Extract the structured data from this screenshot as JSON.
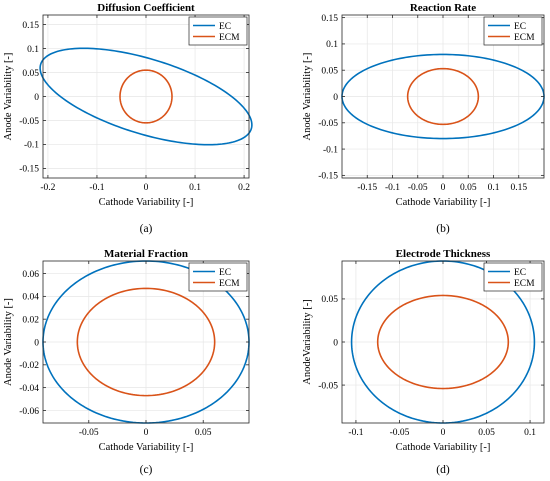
{
  "chart_data": [
    {
      "type": "line",
      "title": "Diffusion Coefficient",
      "xlabel": "Cathode Variability [-]",
      "ylabel": "Anode Variability [-]",
      "caption": "(a)",
      "xlim": [
        -0.21,
        0.21
      ],
      "ylim": [
        -0.17,
        0.17
      ],
      "xticks": [
        -0.2,
        -0.1,
        0,
        0.1,
        0.2
      ],
      "xtick_labels": [
        "-0.2",
        "-0.1",
        "0",
        "0.1",
        "0.2"
      ],
      "yticks": [
        -0.15,
        -0.1,
        -0.05,
        0,
        0.05,
        0.1,
        0.15
      ],
      "ytick_labels": [
        "-0.15",
        "-0.1",
        "-0.05",
        "0",
        "0.05",
        "0.1",
        "0.15"
      ],
      "grid": true,
      "legend": "top-right",
      "series": [
        {
          "name": "EC",
          "color": "#0072BD",
          "shape": "tilted-ellipse",
          "cx": 0,
          "cy": 0,
          "a": 0.225,
          "b": 0.078,
          "angle_deg": -17.5
        },
        {
          "name": "ECM",
          "color": "#D95319",
          "shape": "ellipse",
          "cx": 0,
          "cy": 0,
          "a": 0.053,
          "b": 0.055,
          "angle_deg": 0
        }
      ]
    },
    {
      "type": "line",
      "title": "Reaction Rate",
      "xlabel": "Cathode Variability [-]",
      "ylabel": "Anode Variability [-]",
      "caption": "(b)",
      "xlim": [
        -0.2,
        0.2
      ],
      "ylim": [
        -0.155,
        0.155
      ],
      "xticks": [
        -0.15,
        -0.1,
        -0.05,
        0,
        0.05,
        0.1,
        0.15
      ],
      "xtick_labels": [
        "-0.15",
        "-0.1",
        "-0.05",
        "0",
        "0.05",
        "0.1",
        "0.15"
      ],
      "yticks": [
        -0.15,
        -0.1,
        -0.05,
        0,
        0.05,
        0.1,
        0.15
      ],
      "ytick_labels": [
        "-0.15",
        "-0.1",
        "-0.05",
        "0",
        "0.05",
        "0.1",
        "0.15"
      ],
      "grid": true,
      "legend": "top-right",
      "series": [
        {
          "name": "EC",
          "color": "#0072BD",
          "shape": "ellipse",
          "cx": 0,
          "cy": 0,
          "a": 0.2,
          "b": 0.08,
          "angle_deg": 0
        },
        {
          "name": "ECM",
          "color": "#D95319",
          "shape": "ellipse",
          "cx": 0,
          "cy": 0,
          "a": 0.07,
          "b": 0.053,
          "angle_deg": 0
        }
      ]
    },
    {
      "type": "line",
      "title": "Material Fraction",
      "xlabel": "Cathode Variability [-]",
      "ylabel": "Anode Variability [-]",
      "caption": "(c)",
      "xlim": [
        -0.09,
        0.09
      ],
      "ylim": [
        -0.071,
        0.071
      ],
      "xticks": [
        -0.05,
        0,
        0.05
      ],
      "xtick_labels": [
        "-0.05",
        "0",
        "0.05"
      ],
      "yticks": [
        -0.06,
        -0.04,
        -0.02,
        0,
        0.02,
        0.04,
        0.06
      ],
      "ytick_labels": [
        "-0.06",
        "-0.04",
        "-0.02",
        "0",
        "0.02",
        "0.04",
        "0.06"
      ],
      "grid": true,
      "legend": "top-right",
      "series": [
        {
          "name": "EC",
          "color": "#0072BD",
          "shape": "ellipse",
          "cx": 0,
          "cy": 0,
          "a": 0.09,
          "b": 0.071,
          "angle_deg": 0
        },
        {
          "name": "ECM",
          "color": "#D95319",
          "shape": "ellipse",
          "cx": 0,
          "cy": 0,
          "a": 0.06,
          "b": 0.047,
          "angle_deg": 0
        }
      ]
    },
    {
      "type": "line",
      "title": "Electrode Thickness",
      "xlabel": "Cathode Variability [-]",
      "ylabel": "AnodeVariability [-]",
      "caption": "(d)",
      "xlim": [
        -0.116,
        0.116
      ],
      "ylim": [
        -0.094,
        0.094
      ],
      "xticks": [
        -0.1,
        -0.05,
        0,
        0.05,
        0.1
      ],
      "xtick_labels": [
        "-0.1",
        "-0.05",
        "0",
        "0.05",
        "0.1"
      ],
      "yticks": [
        -0.05,
        0,
        0.05
      ],
      "ytick_labels": [
        "-0.05",
        "0",
        "0.05"
      ],
      "grid": true,
      "legend": "top-right",
      "series": [
        {
          "name": "EC",
          "color": "#0072BD",
          "shape": "ellipse",
          "cx": 0,
          "cy": 0,
          "a": 0.105,
          "b": 0.094,
          "angle_deg": 0
        },
        {
          "name": "ECM",
          "color": "#D95319",
          "shape": "ellipse",
          "cx": 0,
          "cy": 0,
          "a": 0.075,
          "b": 0.054,
          "angle_deg": 0
        }
      ]
    }
  ]
}
